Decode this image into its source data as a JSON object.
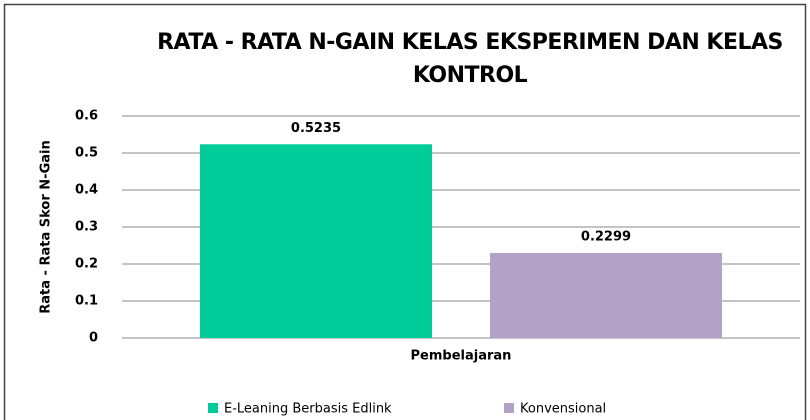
{
  "chart_data": {
    "type": "bar",
    "title": "RATA - RATA N-GAIN KELAS EKSPERIMEN DAN KELAS KONTROL",
    "y_label": "Rata - Rata Skor N-Gain",
    "categories": [
      "Pembelajaran"
    ],
    "series": [
      {
        "name": "E-Leaning Berbasis Edlink",
        "color": "#00cc99",
        "values": [
          0.5235
        ]
      },
      {
        "name": "Konvensional",
        "color": "#b3a2c7",
        "values": [
          0.2299
        ]
      }
    ],
    "ylim": [
      0,
      0.6
    ],
    "yticks": [
      0,
      0.1,
      0.2,
      0.3,
      0.4,
      0.5,
      0.6
    ],
    "grid": true,
    "legend": "bottom"
  }
}
